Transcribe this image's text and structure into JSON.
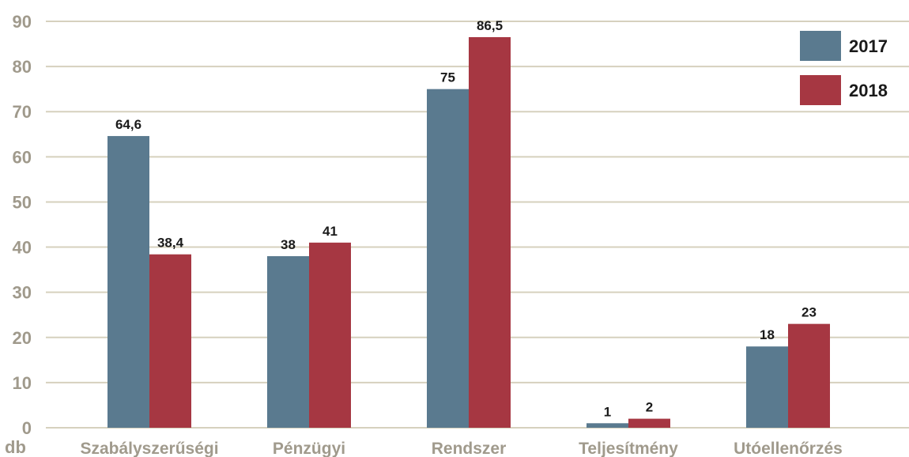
{
  "chart_data": {
    "type": "bar",
    "categories": [
      "Szabályszerűségi",
      "Pénzügyi",
      "Rendszer",
      "Teljesítmény",
      "Utóellenőrzés"
    ],
    "series": [
      {
        "name": "2017",
        "values": [
          64.6,
          38,
          75,
          1,
          18
        ],
        "labels": [
          "64,6",
          "38",
          "75",
          "1",
          "18"
        ],
        "color": "#5a7a8f"
      },
      {
        "name": "2018",
        "values": [
          38.4,
          41,
          86.5,
          2,
          23
        ],
        "labels": [
          "38,4",
          "41",
          "86,5",
          "2",
          "23"
        ],
        "color": "#a63742"
      }
    ],
    "ylim": [
      0,
      90
    ],
    "yticks": [
      0,
      10,
      20,
      30,
      40,
      50,
      60,
      70,
      80,
      90
    ],
    "ylabel": "db",
    "grid": true,
    "legend": "top-right",
    "grid_color": "#d6d1be",
    "axis_text_color": "#a09a8c"
  }
}
